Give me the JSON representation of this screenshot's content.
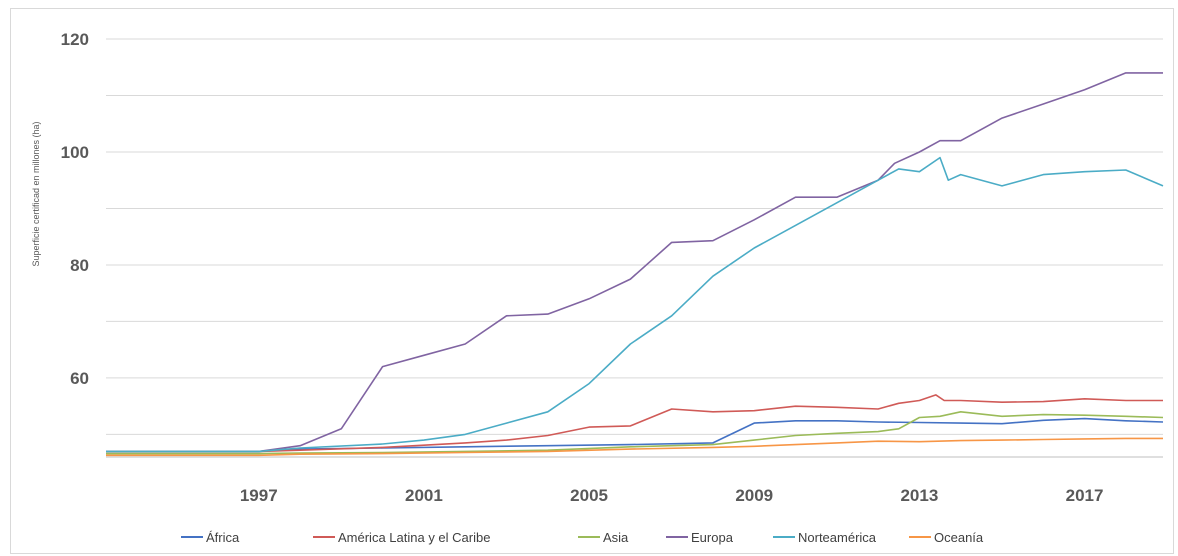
{
  "chart_data": {
    "type": "line",
    "title": "",
    "xlabel": "",
    "ylabel": "Superficie   certificad   en millones   (ha)",
    "xlim": [
      1993.3,
      2018.9
    ],
    "ylim": [
      46,
      120
    ],
    "yticks": [
      60,
      80,
      100,
      120
    ],
    "xticks": [
      1997,
      2001,
      2005,
      2009,
      2013,
      2017
    ],
    "grid": true,
    "legend_position": "bottom",
    "series": [
      {
        "name": "África",
        "color": "#4472c4",
        "points": [
          [
            1993.3,
            47
          ],
          [
            1997,
            47
          ],
          [
            1998,
            47.4
          ],
          [
            2000,
            47.6
          ],
          [
            2002,
            47.8
          ],
          [
            2004,
            48
          ],
          [
            2006,
            48.2
          ],
          [
            2008,
            48.5
          ],
          [
            2009,
            52
          ],
          [
            2010,
            52.4
          ],
          [
            2011,
            52.4
          ],
          [
            2012,
            52.2
          ],
          [
            2013,
            52.1
          ],
          [
            2014,
            52
          ],
          [
            2015,
            51.9
          ],
          [
            2016,
            52.5
          ],
          [
            2017,
            52.8
          ],
          [
            2018,
            52.4
          ],
          [
            2018.9,
            52.2
          ]
        ]
      },
      {
        "name": "América Latina y el Caribe",
        "color": "#d05a57",
        "points": [
          [
            1993.3,
            47
          ],
          [
            1997,
            47
          ],
          [
            1998,
            47.2
          ],
          [
            2000,
            47.7
          ],
          [
            2002,
            48.5
          ],
          [
            2003,
            49
          ],
          [
            2004,
            49.8
          ],
          [
            2005,
            51.3
          ],
          [
            2006,
            51.5
          ],
          [
            2007,
            54.5
          ],
          [
            2008,
            54
          ],
          [
            2009,
            54.2
          ],
          [
            2010,
            55
          ],
          [
            2011,
            54.8
          ],
          [
            2012,
            54.5
          ],
          [
            2012.5,
            55.5
          ],
          [
            2013,
            56
          ],
          [
            2013.4,
            57
          ],
          [
            2013.6,
            56
          ],
          [
            2014,
            56
          ],
          [
            2015,
            55.7
          ],
          [
            2016,
            55.8
          ],
          [
            2017,
            56.3
          ],
          [
            2018,
            56
          ],
          [
            2018.9,
            56
          ]
        ]
      },
      {
        "name": "Asia",
        "color": "#9bbb59",
        "points": [
          [
            1993.3,
            46.6
          ],
          [
            1997,
            46.6
          ],
          [
            1998,
            46.7
          ],
          [
            2000,
            46.8
          ],
          [
            2002,
            47
          ],
          [
            2004,
            47.2
          ],
          [
            2006,
            47.8
          ],
          [
            2008,
            48.2
          ],
          [
            2009,
            49
          ],
          [
            2010,
            49.8
          ],
          [
            2011,
            50.2
          ],
          [
            2012,
            50.5
          ],
          [
            2012.5,
            51
          ],
          [
            2013,
            53
          ],
          [
            2013.5,
            53.2
          ],
          [
            2014,
            54
          ],
          [
            2015,
            53.2
          ],
          [
            2016,
            53.5
          ],
          [
            2017,
            53.4
          ],
          [
            2018,
            53.2
          ],
          [
            2018.9,
            53
          ]
        ]
      },
      {
        "name": "Europa",
        "color": "#8064a2",
        "points": [
          [
            1993.3,
            47
          ],
          [
            1997,
            47
          ],
          [
            1998,
            48
          ],
          [
            1999,
            51
          ],
          [
            2000,
            62
          ],
          [
            2001,
            64
          ],
          [
            2002,
            66
          ],
          [
            2003,
            71
          ],
          [
            2004,
            71.3
          ],
          [
            2005,
            74
          ],
          [
            2006,
            77.5
          ],
          [
            2007,
            84
          ],
          [
            2008,
            84.3
          ],
          [
            2009,
            88
          ],
          [
            2010,
            92
          ],
          [
            2011,
            92
          ],
          [
            2012,
            95
          ],
          [
            2012.4,
            98
          ],
          [
            2013,
            100
          ],
          [
            2013.5,
            102
          ],
          [
            2014,
            102
          ],
          [
            2015,
            106
          ],
          [
            2016,
            108.5
          ],
          [
            2017,
            111
          ],
          [
            2018,
            114
          ],
          [
            2018.9,
            114
          ]
        ]
      },
      {
        "name": "Norteamérica",
        "color": "#4bacc6",
        "points": [
          [
            1993.3,
            47
          ],
          [
            1997,
            47
          ],
          [
            1998,
            47.6
          ],
          [
            2000,
            48.3
          ],
          [
            2001,
            49
          ],
          [
            2002,
            50
          ],
          [
            2003,
            52
          ],
          [
            2004,
            54
          ],
          [
            2005,
            59
          ],
          [
            2006,
            66
          ],
          [
            2007,
            71
          ],
          [
            2008,
            78
          ],
          [
            2009,
            83
          ],
          [
            2010,
            87
          ],
          [
            2011,
            91
          ],
          [
            2012,
            95
          ],
          [
            2012.5,
            97
          ],
          [
            2013,
            96.5
          ],
          [
            2013.5,
            99
          ],
          [
            2013.7,
            95
          ],
          [
            2014,
            96
          ],
          [
            2015,
            94
          ],
          [
            2016,
            96
          ],
          [
            2017,
            96.5
          ],
          [
            2018,
            96.8
          ],
          [
            2018.9,
            94
          ]
        ]
      },
      {
        "name": "Oceanía",
        "color": "#f79646",
        "points": [
          [
            1993.3,
            46.3
          ],
          [
            1997,
            46.3
          ],
          [
            1998,
            46.5
          ],
          [
            2000,
            46.6
          ],
          [
            2002,
            46.8
          ],
          [
            2004,
            47
          ],
          [
            2006,
            47.4
          ],
          [
            2008,
            47.7
          ],
          [
            2009,
            47.9
          ],
          [
            2010,
            48.2
          ],
          [
            2011,
            48.5
          ],
          [
            2012,
            48.8
          ],
          [
            2013,
            48.7
          ],
          [
            2014,
            48.9
          ],
          [
            2015,
            49
          ],
          [
            2016,
            49.1
          ],
          [
            2017,
            49.2
          ],
          [
            2018,
            49.3
          ],
          [
            2018.9,
            49.3
          ]
        ]
      }
    ]
  }
}
